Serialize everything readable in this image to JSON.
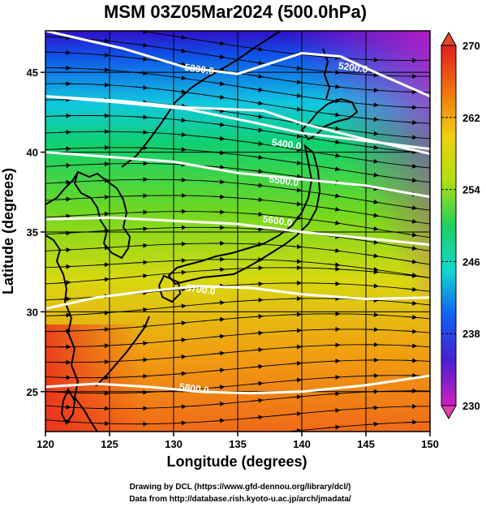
{
  "title": "MSM 03Z05Mar2024 (500.0hPa)",
  "xlabel": "Longitude (degrees)",
  "ylabel": "Latitude  (degrees)",
  "credits": [
    "Drawing by DCL (https://www.gfd-dennou.org/library/dcl/)",
    "Data from http://database.rish.kyoto-u.ac.jp/arch/jmadata/"
  ],
  "chart_data": {
    "type": "map",
    "xlim": [
      120,
      150
    ],
    "ylim": [
      22.5,
      47.6
    ],
    "x_ticks": [
      120,
      125,
      130,
      135,
      140,
      145,
      150
    ],
    "y_ticks": [
      25,
      30,
      35,
      40,
      45
    ],
    "colorbar": {
      "min": 230,
      "max": 270,
      "labels": [
        230,
        238,
        246,
        254,
        262,
        270
      ],
      "colors": [
        "#d020c0",
        "#4a1fd0",
        "#1060f0",
        "#10d8d0",
        "#20d060",
        "#b0e010",
        "#f0d010",
        "#f07010",
        "#e02020"
      ]
    },
    "contours": [
      {
        "label": "5200.0",
        "points": [
          [
            120,
            47.6
          ],
          [
            126,
            46.5
          ],
          [
            131,
            45.3
          ],
          [
            135,
            44.9
          ],
          [
            140,
            46.2
          ],
          [
            143,
            46.0
          ],
          [
            146,
            44.9
          ],
          [
            150,
            43.5
          ]
        ],
        "label_at": [
          144,
          45.3
        ]
      },
      {
        "label": "5300.0",
        "points": [
          [
            120,
            43.5
          ],
          [
            126,
            43.2
          ],
          [
            131,
            42.8
          ],
          [
            134,
            42.7
          ],
          [
            137,
            42.6
          ],
          [
            140,
            41.8
          ],
          [
            145,
            40.8
          ],
          [
            150,
            39.9
          ]
        ],
        "label_at": [
          132,
          45.2
        ]
      },
      {
        "label": "5400.0",
        "points": [
          [
            120,
            43.5
          ],
          [
            126,
            43.1
          ],
          [
            131,
            42.7
          ],
          [
            136,
            41.9
          ],
          [
            140,
            41.2
          ],
          [
            145,
            40.7
          ],
          [
            150,
            40.2
          ]
        ],
        "label_at": [
          138.8,
          40.5
        ]
      },
      {
        "label": "5500.0",
        "points": [
          [
            120,
            40.0
          ],
          [
            125,
            39.7
          ],
          [
            130,
            39.4
          ],
          [
            135,
            38.7
          ],
          [
            140,
            38.3
          ],
          [
            145,
            37.9
          ],
          [
            150,
            37.2
          ]
        ],
        "label_at": [
          138.6,
          38.2
        ]
      },
      {
        "label": "5600.0",
        "points": [
          [
            120,
            35.8
          ],
          [
            125,
            35.9
          ],
          [
            130,
            35.7
          ],
          [
            135,
            35.5
          ],
          [
            140,
            35.0
          ],
          [
            145,
            34.6
          ],
          [
            150,
            34.2
          ]
        ],
        "label_at": [
          138.1,
          35.7
        ]
      },
      {
        "label": "5700.0",
        "points": [
          [
            120,
            30.2
          ],
          [
            124,
            30.9
          ],
          [
            128,
            31.3
          ],
          [
            132,
            31.6
          ],
          [
            136,
            31.5
          ],
          [
            140,
            31.1
          ],
          [
            145,
            30.8
          ],
          [
            150,
            30.9
          ]
        ],
        "label_at": [
          132.1,
          31.4
        ]
      },
      {
        "label": "5800.0",
        "points": [
          [
            120,
            25.3
          ],
          [
            124,
            25.5
          ],
          [
            128,
            25.3
          ],
          [
            132,
            25.0
          ],
          [
            136,
            24.9
          ],
          [
            140,
            25.0
          ],
          [
            145,
            25.4
          ],
          [
            150,
            26.0
          ]
        ],
        "label_at": [
          131.6,
          25.2
        ]
      }
    ]
  }
}
